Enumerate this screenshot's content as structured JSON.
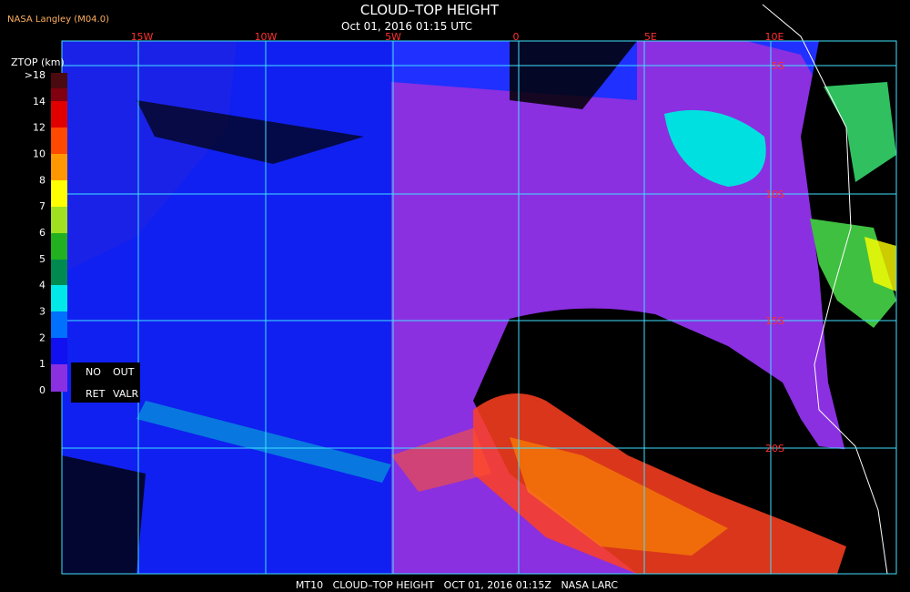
{
  "header": {
    "title": "CLOUD–TOP HEIGHT",
    "subtitle": "Oct 01, 2016 01:15 UTC",
    "source": "NASA Langley (M04.0)"
  },
  "legend": {
    "title": "ZTOP (km)",
    "labels": [
      ">18",
      "14",
      "12",
      "10",
      "8",
      "7",
      "6",
      "5",
      "4",
      "3",
      "2",
      "1",
      "0"
    ],
    "no_ret": [
      "NO",
      "RET"
    ],
    "out_valr": [
      "OUT",
      "VALR"
    ]
  },
  "map": {
    "longitudes": [
      "15W",
      "10W",
      "5W",
      "0",
      "5E",
      "10E"
    ],
    "latitudes": [
      "5S",
      "10S",
      "15S",
      "20S"
    ]
  },
  "footer": "MT10   CLOUD–TOP HEIGHT   OCT 01, 2016 01:15Z   NASA LARC"
}
